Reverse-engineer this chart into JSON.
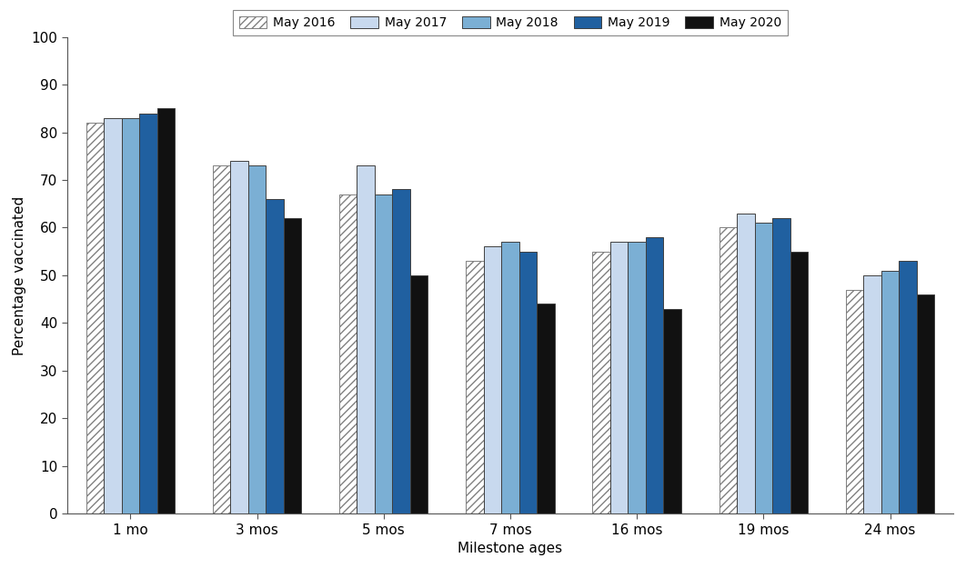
{
  "categories": [
    "1 mo",
    "3 mos",
    "5 mos",
    "7 mos",
    "16 mos",
    "19 mos",
    "24 mos"
  ],
  "series": {
    "May 2016": [
      82,
      73,
      67,
      53,
      55,
      60,
      47
    ],
    "May 2017": [
      83,
      74,
      73,
      56,
      57,
      63,
      50
    ],
    "May 2018": [
      83,
      73,
      67,
      57,
      57,
      61,
      51
    ],
    "May 2019": [
      84,
      66,
      68,
      55,
      58,
      62,
      53
    ],
    "May 2020": [
      85,
      62,
      50,
      44,
      43,
      55,
      46
    ]
  },
  "color_map": {
    "May 2016": "#ffffff",
    "May 2017": "#c8d9ee",
    "May 2018": "#7bafd4",
    "May 2019": "#2060a0",
    "May 2020": "#111111"
  },
  "hatch_map": {
    "May 2016": "////",
    "May 2017": "",
    "May 2018": "",
    "May 2019": "",
    "May 2020": ""
  },
  "bar_edge_color": "#404040",
  "hatch_edge_color": "#808080",
  "ylabel": "Percentage vaccinated",
  "xlabel": "Milestone ages",
  "ylim": [
    0,
    100
  ],
  "yticks": [
    0,
    10,
    20,
    30,
    40,
    50,
    60,
    70,
    80,
    90,
    100
  ],
  "legend_labels": [
    "May 2016",
    "May 2017",
    "May 2018",
    "May 2019",
    "May 2020"
  ],
  "background_color": "#ffffff",
  "bar_width": 0.14,
  "figsize": [
    10.62,
    6.25
  ],
  "dpi": 100
}
